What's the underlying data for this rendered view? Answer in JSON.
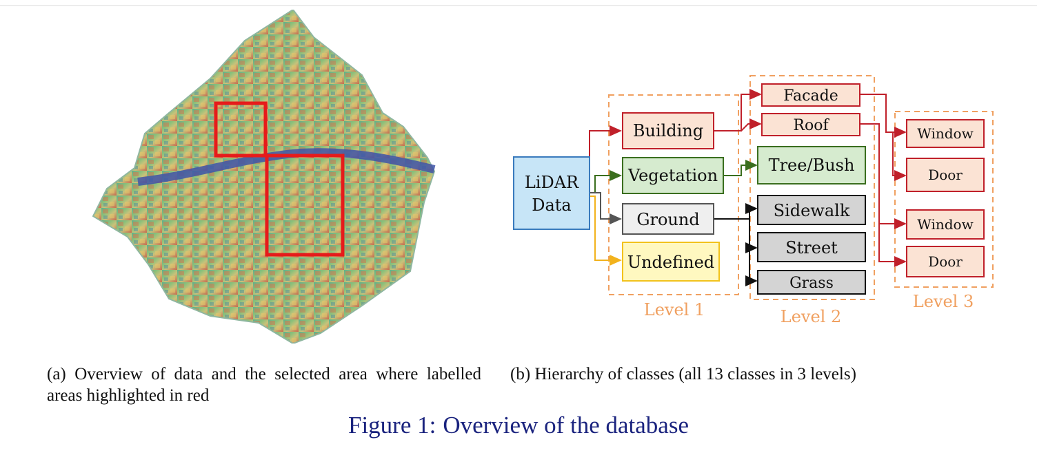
{
  "subfigure_a": {
    "caption": "(a) Overview of data and the selected area where labelled areas highlighted in red"
  },
  "subfigure_b": {
    "caption": "(b) Hierarchy of classes (all 13 classes in 3 levels)",
    "root": "LiDAR Data",
    "levels": {
      "level1": "Level 1",
      "level2": "Level 2",
      "level3": "Level 3"
    },
    "level1_classes": [
      "Building",
      "Vegetation",
      "Ground",
      "Undefined"
    ],
    "level2_classes": [
      "Facade",
      "Roof",
      "Tree/Bush",
      "Sidewalk",
      "Street",
      "Grass"
    ],
    "level3_classes": [
      "Window",
      "Door",
      "Window",
      "Door"
    ],
    "colors": {
      "building": "#fbe3d4",
      "building_border": "#c0202a",
      "vegetation": "#d6ebcf",
      "vegetation_border": "#3a6e1e",
      "ground": "#efefef",
      "ground_border": "#555555",
      "undefined": "#fff8c0",
      "undefined_border": "#f2c21c",
      "lidar": "#c7e5f7",
      "lidar_border": "#3a7bbd",
      "ground_sub": "#d4d4d4",
      "level_frame": "#f0a060"
    }
  },
  "figure": {
    "number": "Figure 1:",
    "title": "Overview of the database"
  }
}
